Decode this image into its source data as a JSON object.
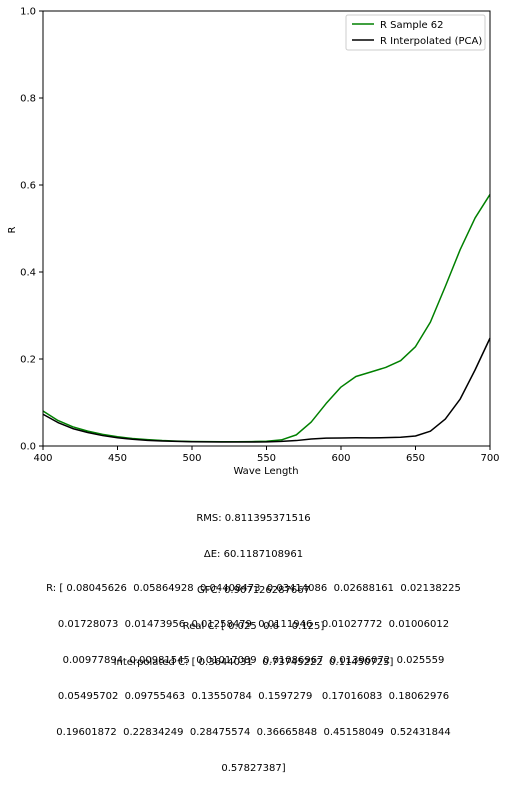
{
  "chart_data": {
    "type": "line",
    "xlabel": "Wave Length",
    "ylabel": "R",
    "xlim": [
      400,
      700
    ],
    "ylim": [
      0,
      1.0
    ],
    "xticks": [
      "400",
      "450",
      "500",
      "550",
      "600",
      "650",
      "700"
    ],
    "yticks": [
      "0.0",
      "0.2",
      "0.4",
      "0.6",
      "0.8",
      "1.0"
    ],
    "grid": false,
    "legend_position": "top-right",
    "x": [
      400,
      410,
      420,
      430,
      440,
      450,
      460,
      470,
      480,
      490,
      500,
      510,
      520,
      530,
      540,
      550,
      560,
      570,
      580,
      590,
      600,
      610,
      620,
      630,
      640,
      650,
      660,
      670,
      680,
      690,
      700
    ],
    "series": [
      {
        "name": "R Sample 62",
        "color": "#008000",
        "values": [
          0.08045626,
          0.05864928,
          0.04408473,
          0.03414086,
          0.02688161,
          0.02138225,
          0.01728073,
          0.01473956,
          0.01258479,
          0.0111946,
          0.01027772,
          0.01006012,
          0.00977894,
          0.00981545,
          0.01017089,
          0.01086967,
          0.01396072,
          0.025559,
          0.05495702,
          0.09755463,
          0.13550784,
          0.1597279,
          0.17016083,
          0.18062976,
          0.19601872,
          0.22834249,
          0.28475574,
          0.36665848,
          0.45158049,
          0.52431844,
          0.57827387
        ]
      },
      {
        "name": "R Interpolated (PCA)",
        "color": "#000000",
        "values": [
          0.073,
          0.054,
          0.04,
          0.031,
          0.024,
          0.019,
          0.0155,
          0.013,
          0.0115,
          0.0105,
          0.0098,
          0.0095,
          0.0093,
          0.0092,
          0.0092,
          0.0094,
          0.0105,
          0.0125,
          0.016,
          0.018,
          0.0185,
          0.019,
          0.0188,
          0.0192,
          0.02,
          0.023,
          0.034,
          0.062,
          0.108,
          0.175,
          0.248
        ]
      }
    ]
  },
  "stats": {
    "rms": "RMS: 0.811395371516",
    "delta_e": "ΔE: 60.1187108961",
    "gfc": "GFC: 0.907126287667",
    "real_c": "Real C: [ 0.025  0.6    0.125]",
    "interp_c": "Interpolated C: [ 0.3644031   0.73745222  0.11450725]"
  },
  "r_vector": {
    "line1": "R: [ 0.08045626  0.05864928  0.04408473  0.03414086  0.02688161  0.02138225",
    "line2": "0.01728073  0.01473956  0.01258479  0.0111946   0.01027772  0.01006012",
    "line3": "0.00977894  0.00981545  0.01017089  0.01086967  0.01396072  0.025559",
    "line4": "0.05495702  0.09755463  0.13550784  0.1597279   0.17016083  0.18062976",
    "line5": "0.19601872  0.22834249  0.28475574  0.36665848  0.45158049  0.52431844",
    "line6": "0.57827387]"
  }
}
